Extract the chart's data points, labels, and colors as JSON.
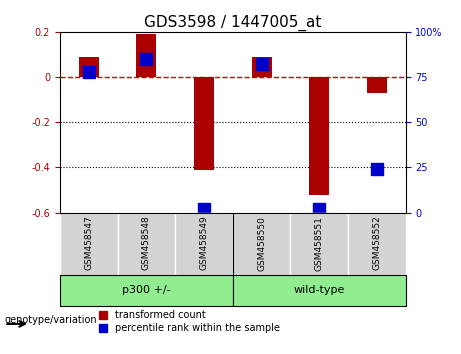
{
  "title": "GDS3598 / 1447005_at",
  "samples": [
    "GSM458547",
    "GSM458548",
    "GSM458549",
    "GSM458550",
    "GSM458551",
    "GSM458552"
  ],
  "red_values": [
    0.09,
    0.19,
    -0.41,
    0.09,
    -0.52,
    -0.07
  ],
  "blue_values": [
    0.015,
    0.08,
    -0.565,
    0.055,
    -0.565,
    -0.4
  ],
  "blue_percentiles": [
    78,
    85,
    2,
    82,
    2,
    24
  ],
  "ylim_left": [
    -0.6,
    0.2
  ],
  "ylim_right": [
    0,
    100
  ],
  "yticks_left": [
    -0.6,
    -0.4,
    -0.2,
    0.0,
    0.2
  ],
  "yticks_right": [
    0,
    25,
    50,
    75,
    100
  ],
  "groups": [
    {
      "label": "p300 +/-",
      "samples": [
        "GSM458547",
        "GSM458548",
        "GSM458549"
      ],
      "color": "#90ee90"
    },
    {
      "label": "wild-type",
      "samples": [
        "GSM458550",
        "GSM458551",
        "GSM458552"
      ],
      "color": "#90ee90"
    }
  ],
  "group_label": "genotype/variation",
  "red_color": "#aa0000",
  "blue_color": "#0000cc",
  "bar_width": 0.35,
  "blue_marker_size": 8,
  "hline_color": "#cc0000",
  "dotted_line_color": "#000000",
  "legend_red": "transformed count",
  "legend_blue": "percentile rank within the sample",
  "tick_label_size": 7,
  "title_size": 11
}
